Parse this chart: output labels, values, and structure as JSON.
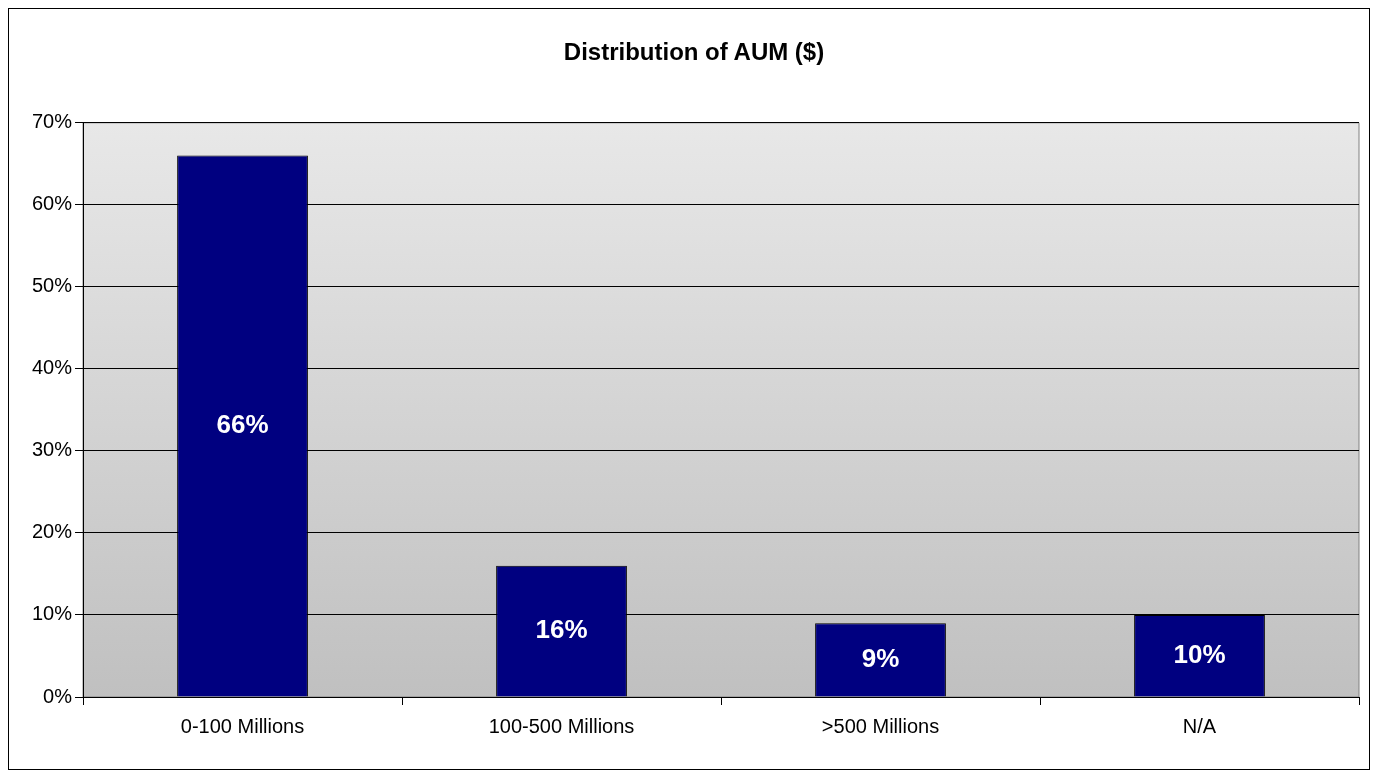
{
  "chart_data": {
    "type": "bar",
    "title": "Distribution of AUM ($)",
    "categories": [
      "0-100 Millions",
      "100-500 Millions",
      ">500 Millions",
      "N/A"
    ],
    "values": [
      66,
      16,
      9,
      10
    ],
    "color": "#000080",
    "value_labels": [
      "66%",
      "16%",
      "9%",
      "10%"
    ],
    "ylim": [
      0,
      70
    ],
    "yticks": [
      {
        "value": 0,
        "label": "0%"
      },
      {
        "value": 10,
        "label": "10%"
      },
      {
        "value": 20,
        "label": "20%"
      },
      {
        "value": 30,
        "label": "30%"
      },
      {
        "value": 40,
        "label": "40%"
      },
      {
        "value": 50,
        "label": "50%"
      },
      {
        "value": 60,
        "label": "60%"
      },
      {
        "value": 70,
        "label": "70%"
      }
    ],
    "grid": "y",
    "legend": false
  }
}
